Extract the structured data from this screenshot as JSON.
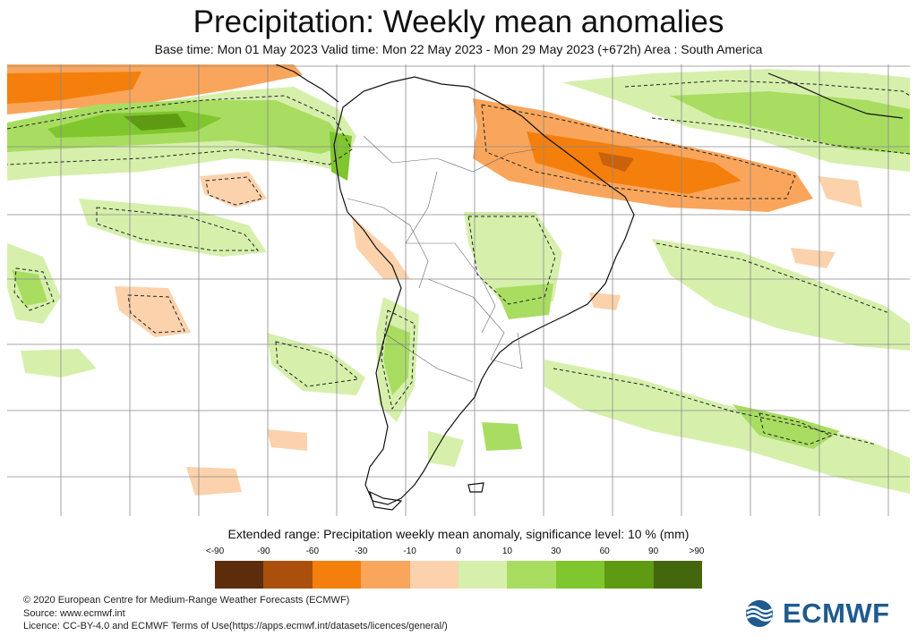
{
  "header": {
    "title": "Precipitation: Weekly mean anomalies",
    "subtitle": "Base time: Mon 01 May 2023 Valid time: Mon 22 May 2023 - Mon 29 May 2023 (+672h) Area : South America"
  },
  "legend": {
    "title": "Extended range: Precipitation weekly mean anomaly, significance level: 10 % (mm)",
    "ticks": [
      "<-90",
      "-90",
      "-60",
      "-30",
      "-10",
      "0",
      "10",
      "30",
      "60",
      "90",
      ">90"
    ],
    "colors": [
      "#5c2c0c",
      "#ab4f0c",
      "#f57f0c",
      "#f9a65c",
      "#fbd2ac",
      "#d6f0ac",
      "#a8dd62",
      "#80c62e",
      "#5e9a12",
      "#44660c"
    ]
  },
  "footer": {
    "line1": "© 2020 European Centre for Medium-Range Weather Forecasts (ECMWF)",
    "line2": "Source: www.ecmwf.int",
    "line3": "Licence: CC-BY-4.0 and ECMWF Terms of Use(https://apps.ecmwf.int/datasets/licences/general/)"
  },
  "logo": {
    "text": "ECMWF",
    "color": "#1f5b8f"
  }
}
